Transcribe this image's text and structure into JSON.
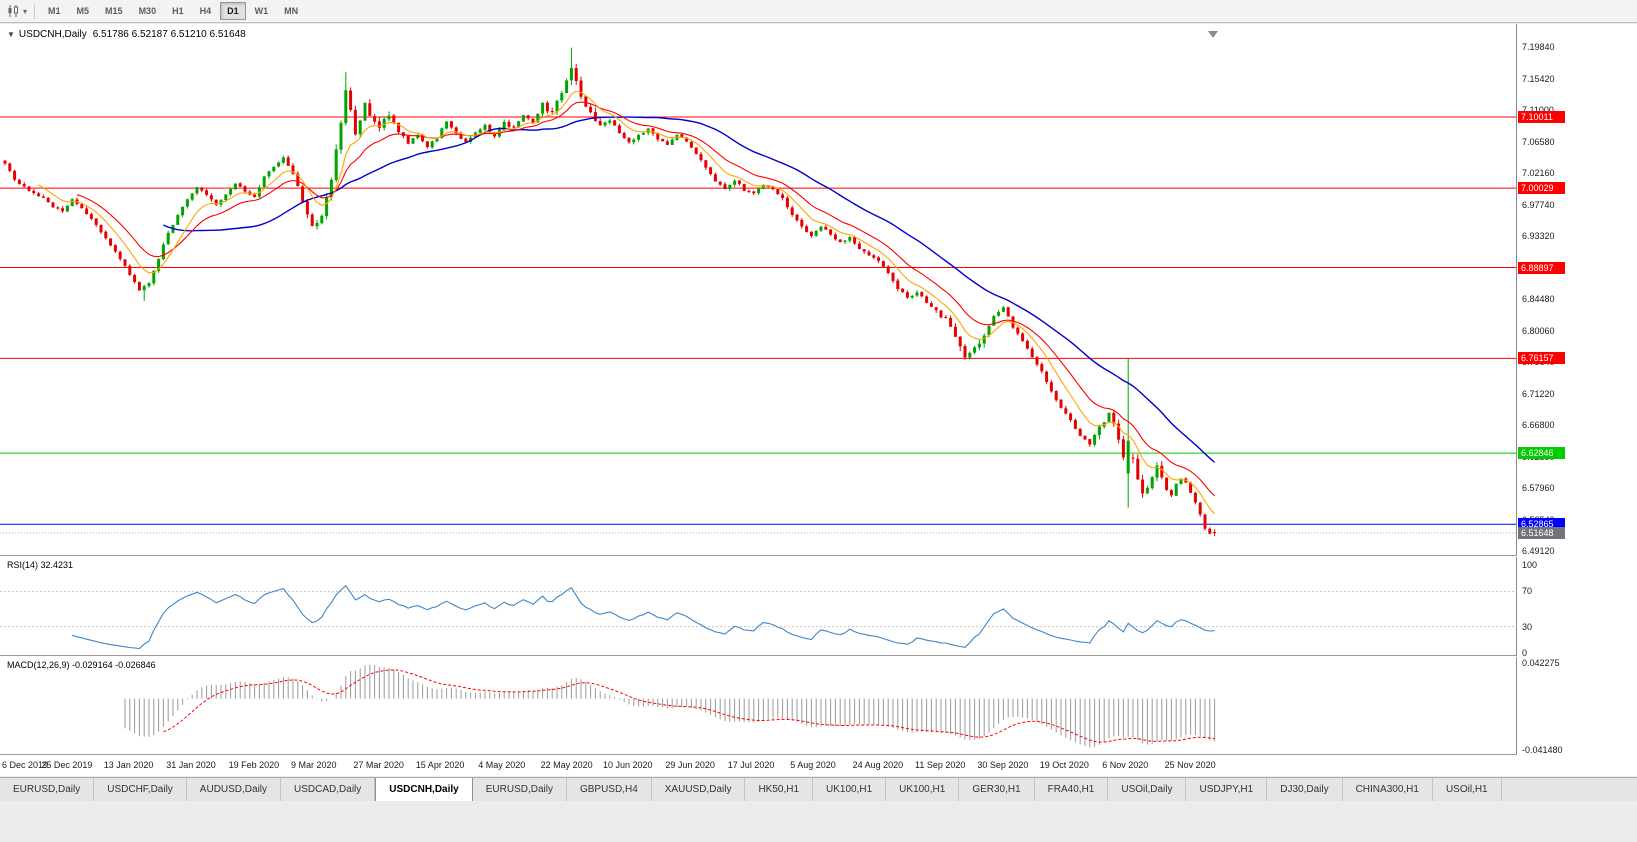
{
  "toolbar": {
    "timeframes": [
      {
        "label": "M1",
        "active": false
      },
      {
        "label": "M5",
        "active": false
      },
      {
        "label": "M15",
        "active": false
      },
      {
        "label": "M30",
        "active": false
      },
      {
        "label": "H1",
        "active": false
      },
      {
        "label": "H4",
        "active": false
      },
      {
        "label": "D1",
        "active": true
      },
      {
        "label": "W1",
        "active": false
      },
      {
        "label": "MN",
        "active": false
      }
    ],
    "caret": "▾"
  },
  "chart": {
    "title": {
      "collapse_icon": "▼",
      "symbol": "USDCNH,Daily",
      "ohlc": "6.51786 6.52187 6.51210 6.51648"
    },
    "price_scale": {
      "labels": [
        "7.19840",
        "7.15420",
        "7.11000",
        "7.06580",
        "7.02160",
        "6.97740",
        "6.93320",
        "6.88900",
        "6.84480",
        "6.80060",
        "6.75640",
        "6.71220",
        "6.66800",
        "6.62380",
        "6.57960",
        "6.53540",
        "6.49120"
      ]
    },
    "levels": [
      {
        "price": 7.10011,
        "label": "7.10011",
        "color": "#FF0000"
      },
      {
        "price": 7.00029,
        "label": "7.00029",
        "color": "#FF0000"
      },
      {
        "price": 6.88897,
        "label": "6.88897",
        "color": "#FF0000"
      },
      {
        "price": 6.76157,
        "label": "6.76157",
        "color": "#FF0000"
      },
      {
        "price": 6.62846,
        "label": "6.62846",
        "color": "#00CC00"
      },
      {
        "price": 6.52865,
        "label": "6.52865",
        "color": "#0000FF"
      }
    ],
    "current_price": {
      "price": 6.51648,
      "label": "6.51648",
      "color": "#73737C"
    }
  },
  "rsi_panel": {
    "title": "RSI(14)",
    "value": "32.4231",
    "scale": [
      {
        "label": "100",
        "value": 100
      },
      {
        "label": "70",
        "value": 70
      },
      {
        "label": "30",
        "value": 30
      },
      {
        "label": "0",
        "value": 0
      }
    ]
  },
  "macd_panel": {
    "title": "MACD(12,26,9)",
    "values": "-0.029164 -0.026846",
    "scale_top": "0.042275",
    "scale_bottom": "-0.041480"
  },
  "time_axis": {
    "dates": [
      "6 Dec 2019",
      "25 Dec 2019",
      "13 Jan 2020",
      "31 Jan 2020",
      "19 Feb 2020",
      "9 Mar 2020",
      "27 Mar 2020",
      "15 Apr 2020",
      "4 May 2020",
      "22 May 2020",
      "10 Jun 2020",
      "29 Jun 2020",
      "17 Jul 2020",
      "5 Aug 2020",
      "24 Aug 2020",
      "11 Sep 2020",
      "30 Sep 2020",
      "19 Oct 2020",
      "6 Nov 2020",
      "25 Nov 2020"
    ],
    "days_per_label": 13
  },
  "tabs": {
    "active_index": 4,
    "items": [
      "EURUSD,Daily",
      "USDCHF,Daily",
      "AUDUSD,Daily",
      "USDCAD,Daily",
      "USDCNH,Daily",
      "EURUSD,Daily",
      "GBPUSD,H4",
      "XAUUSD,Daily",
      "HK50,H1",
      "UK100,H1",
      "UK100,H1",
      "GER30,H1",
      "FRA40,H1",
      "USOil,Daily",
      "USDJPY,H1",
      "DJ30,Daily",
      "CHINA300,H1",
      "USOil,H1"
    ]
  },
  "chart_data": {
    "type": "candlestick",
    "symbol": "USDCNH",
    "period": "Daily",
    "days": 253,
    "y_axis": {
      "top_price": 7.1984,
      "bottom_price": 6.4912
    },
    "last_ohlc": {
      "open": 6.51786,
      "high": 6.52187,
      "low": 6.5121,
      "close": 6.51648
    },
    "candle_colors": {
      "up": "#00A400",
      "down": "#E60000"
    },
    "price_path": [
      [
        0,
        7.036
      ],
      [
        2,
        7.012
      ],
      [
        4,
        7.002
      ],
      [
        6,
        6.994
      ],
      [
        8,
        6.986
      ],
      [
        10,
        6.975
      ],
      [
        12,
        6.968
      ],
      [
        14,
        6.986
      ],
      [
        16,
        6.972
      ],
      [
        18,
        6.958
      ],
      [
        20,
        6.938
      ],
      [
        22,
        6.92
      ],
      [
        24,
        6.902
      ],
      [
        26,
        6.878
      ],
      [
        28,
        6.858
      ],
      [
        30,
        6.868
      ],
      [
        32,
        6.902
      ],
      [
        34,
        6.938
      ],
      [
        36,
        6.962
      ],
      [
        38,
        6.986
      ],
      [
        40,
        7.002
      ],
      [
        42,
        6.99
      ],
      [
        44,
        6.978
      ],
      [
        46,
        6.992
      ],
      [
        48,
        7.008
      ],
      [
        50,
        6.996
      ],
      [
        52,
        6.988
      ],
      [
        54,
        7.016
      ],
      [
        56,
        7.03
      ],
      [
        58,
        7.042
      ],
      [
        60,
        7.022
      ],
      [
        62,
        6.982
      ],
      [
        64,
        6.946
      ],
      [
        66,
        6.962
      ],
      [
        68,
        7.012
      ],
      [
        70,
        7.092
      ],
      [
        71,
        7.138
      ],
      [
        72,
        7.108
      ],
      [
        73,
        7.078
      ],
      [
        74,
        7.092
      ],
      [
        75,
        7.118
      ],
      [
        76,
        7.102
      ],
      [
        78,
        7.086
      ],
      [
        80,
        7.104
      ],
      [
        82,
        7.082
      ],
      [
        84,
        7.062
      ],
      [
        86,
        7.076
      ],
      [
        88,
        7.058
      ],
      [
        90,
        7.072
      ],
      [
        92,
        7.094
      ],
      [
        94,
        7.078
      ],
      [
        96,
        7.064
      ],
      [
        98,
        7.078
      ],
      [
        100,
        7.088
      ],
      [
        102,
        7.072
      ],
      [
        104,
        7.092
      ],
      [
        106,
        7.084
      ],
      [
        108,
        7.102
      ],
      [
        110,
        7.094
      ],
      [
        112,
        7.118
      ],
      [
        114,
        7.104
      ],
      [
        116,
        7.136
      ],
      [
        118,
        7.172
      ],
      [
        119,
        7.152
      ],
      [
        120,
        7.128
      ],
      [
        122,
        7.106
      ],
      [
        124,
        7.088
      ],
      [
        126,
        7.096
      ],
      [
        128,
        7.078
      ],
      [
        130,
        7.064
      ],
      [
        132,
        7.074
      ],
      [
        134,
        7.084
      ],
      [
        136,
        7.07
      ],
      [
        138,
        7.06
      ],
      [
        140,
        7.074
      ],
      [
        142,
        7.066
      ],
      [
        144,
        7.05
      ],
      [
        146,
        7.03
      ],
      [
        148,
        7.01
      ],
      [
        150,
        6.998
      ],
      [
        152,
        7.012
      ],
      [
        154,
        6.998
      ],
      [
        156,
        6.994
      ],
      [
        158,
        7.006
      ],
      [
        160,
        6.998
      ],
      [
        162,
        6.986
      ],
      [
        164,
        6.962
      ],
      [
        166,
        6.946
      ],
      [
        168,
        6.932
      ],
      [
        170,
        6.946
      ],
      [
        172,
        6.936
      ],
      [
        174,
        6.924
      ],
      [
        176,
        6.932
      ],
      [
        178,
        6.916
      ],
      [
        180,
        6.906
      ],
      [
        182,
        6.898
      ],
      [
        184,
        6.88
      ],
      [
        186,
        6.86
      ],
      [
        188,
        6.846
      ],
      [
        190,
        6.854
      ],
      [
        192,
        6.84
      ],
      [
        194,
        6.826
      ],
      [
        196,
        6.816
      ],
      [
        198,
        6.792
      ],
      [
        200,
        6.764
      ],
      [
        202,
        6.774
      ],
      [
        204,
        6.792
      ],
      [
        206,
        6.822
      ],
      [
        208,
        6.832
      ],
      [
        210,
        6.806
      ],
      [
        212,
        6.786
      ],
      [
        214,
        6.764
      ],
      [
        216,
        6.744
      ],
      [
        218,
        6.714
      ],
      [
        220,
        6.692
      ],
      [
        222,
        6.674
      ],
      [
        224,
        6.654
      ],
      [
        226,
        6.642
      ],
      [
        228,
        6.664
      ],
      [
        230,
        6.684
      ],
      [
        231,
        6.67
      ],
      [
        232,
        6.65
      ],
      [
        233,
        6.622
      ],
      [
        234,
        6.624
      ],
      [
        235,
        6.618
      ],
      [
        236,
        6.59
      ],
      [
        237,
        6.57
      ],
      [
        238,
        6.582
      ],
      [
        239,
        6.596
      ],
      [
        240,
        6.61
      ],
      [
        241,
        6.594
      ],
      [
        242,
        6.58
      ],
      [
        243,
        6.57
      ],
      [
        244,
        6.584
      ],
      [
        245,
        6.594
      ],
      [
        246,
        6.586
      ],
      [
        247,
        6.574
      ],
      [
        248,
        6.56
      ],
      [
        249,
        6.542
      ],
      [
        250,
        6.524
      ],
      [
        251,
        6.516
      ],
      [
        252,
        6.5165
      ]
    ],
    "high_volatility_ranges": [
      [
        63,
        82
      ],
      [
        112,
        124
      ],
      [
        194,
        204
      ],
      [
        228,
        242
      ]
    ],
    "forced_extremes": [
      {
        "day": 29,
        "low": 6.842
      },
      {
        "day": 71,
        "high": 7.163
      },
      {
        "day": 118,
        "high": 7.1975
      }
    ],
    "forced_candles": [
      {
        "day": 234,
        "open": 6.6,
        "high": 6.762,
        "low": 6.552,
        "close": 6.646
      }
    ],
    "moving_averages": [
      {
        "name": "slow",
        "type": "SMA",
        "period": 34,
        "color": "#0000CD"
      },
      {
        "name": "medium",
        "type": "EMA",
        "period": 16,
        "color": "#FF0000"
      },
      {
        "name": "fast",
        "type": "EMA",
        "period": 8,
        "color": "#FFA500"
      }
    ],
    "indicators": {
      "rsi": {
        "period": 14,
        "last": 32.4231,
        "color": "#3E86C8",
        "levels": [
          70,
          30
        ]
      },
      "macd": {
        "fast": 12,
        "slow": 26,
        "signal": 9,
        "last": -0.029164,
        "last_signal": -0.026846,
        "hist_color": "#9a9a9a",
        "signal_color": "#FF0000",
        "scale": [
          -0.04148,
          0.042275
        ]
      }
    }
  }
}
